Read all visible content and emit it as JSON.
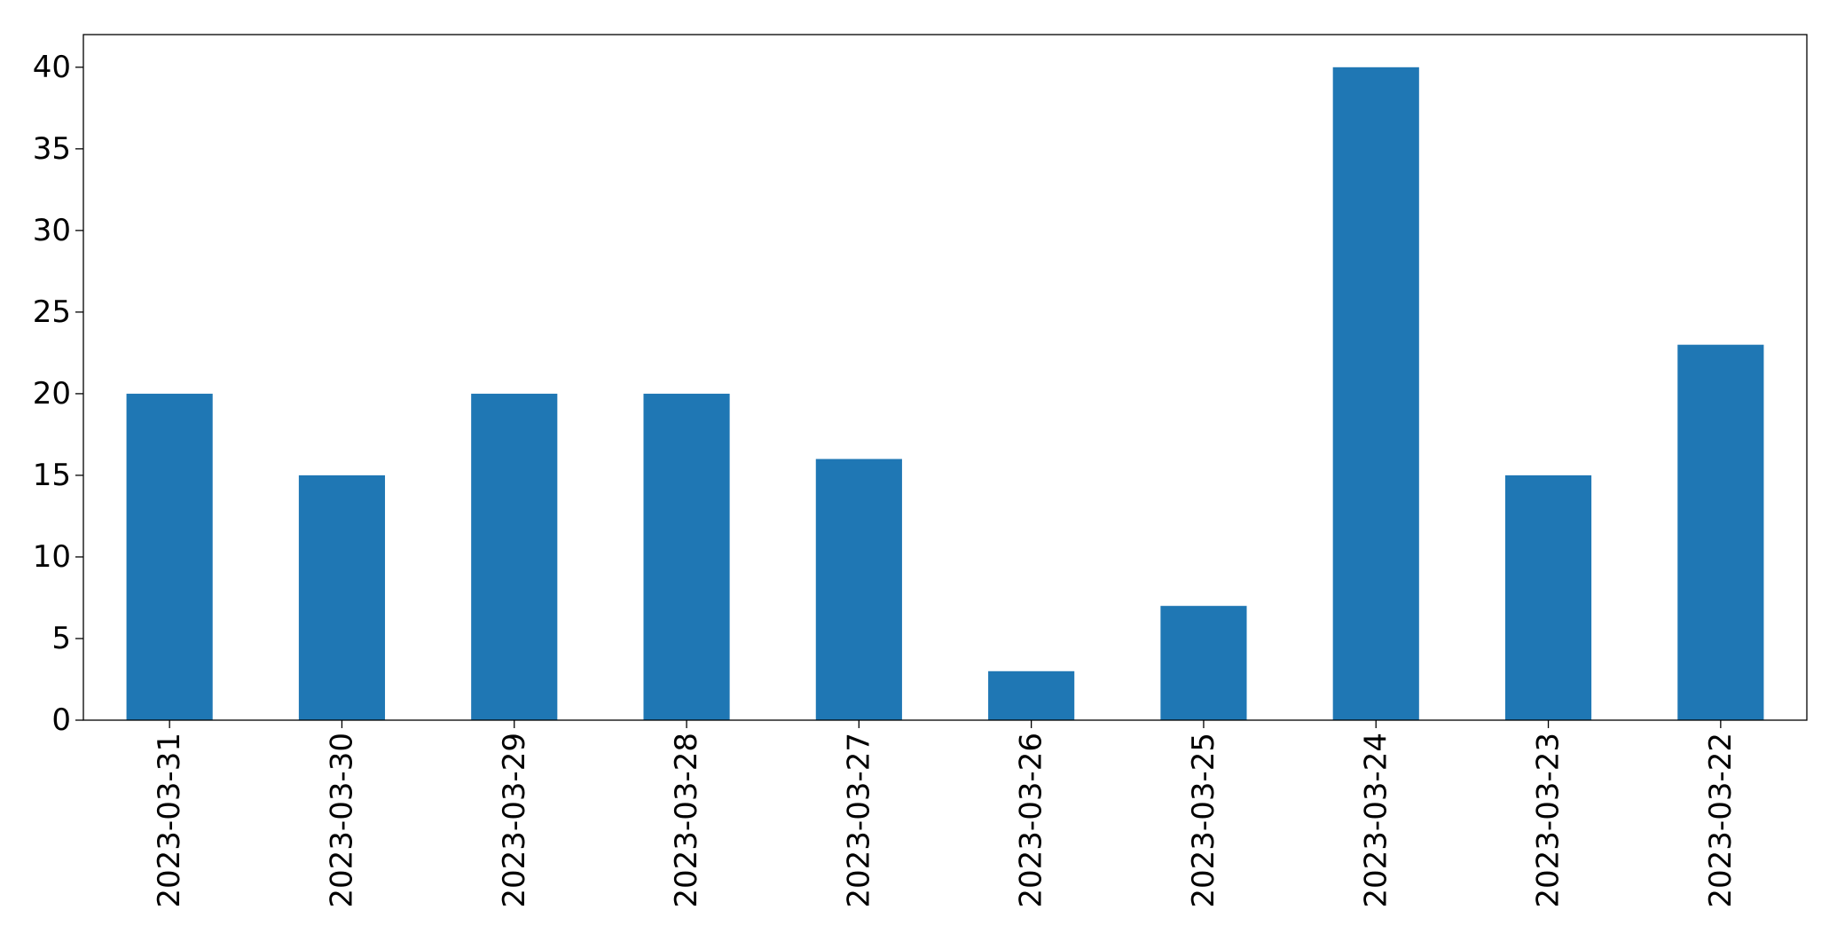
{
  "chart_data": {
    "type": "bar",
    "categories": [
      "2023-03-31",
      "2023-03-30",
      "2023-03-29",
      "2023-03-28",
      "2023-03-27",
      "2023-03-26",
      "2023-03-25",
      "2023-03-24",
      "2023-03-23",
      "2023-03-22"
    ],
    "values": [
      20,
      15,
      20,
      20,
      16,
      3,
      7,
      40,
      15,
      23
    ],
    "title": "",
    "xlabel": "",
    "ylabel": "",
    "ylim": [
      0,
      42
    ],
    "yticks": [
      "0",
      "5",
      "10",
      "15",
      "20",
      "25",
      "30",
      "35",
      "40"
    ],
    "grid": false,
    "legend": "none",
    "colors": {
      "bar": "#1f77b4",
      "axis": "#000000",
      "background": "#ffffff"
    }
  }
}
